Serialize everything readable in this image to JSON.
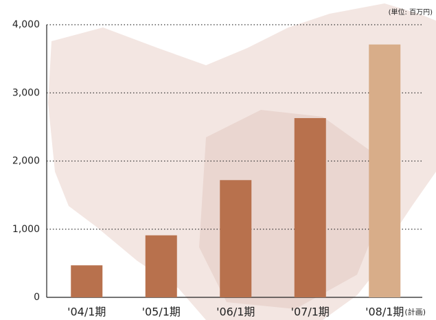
{
  "chart_data": {
    "type": "bar",
    "unit_label": "(単位: 百万円)",
    "categories": [
      "'04/1期",
      "'05/1期",
      "'06/1期",
      "'07/1期",
      "'08/1期"
    ],
    "values": [
      470,
      910,
      1720,
      2630,
      3710
    ],
    "colors": [
      "#b8714d",
      "#b8714d",
      "#b8714d",
      "#b8714d",
      "#d8ad89"
    ],
    "annotation": "(計画)",
    "ylim": [
      0,
      4000
    ],
    "yticks": [
      0,
      {
        "value": 1000,
        "label": "1,000"
      },
      {
        "value": 2000,
        "label": "2,000"
      },
      {
        "value": 3000,
        "label": "3,000"
      },
      {
        "value": 4000,
        "label": "4,000"
      }
    ],
    "grid": true
  }
}
